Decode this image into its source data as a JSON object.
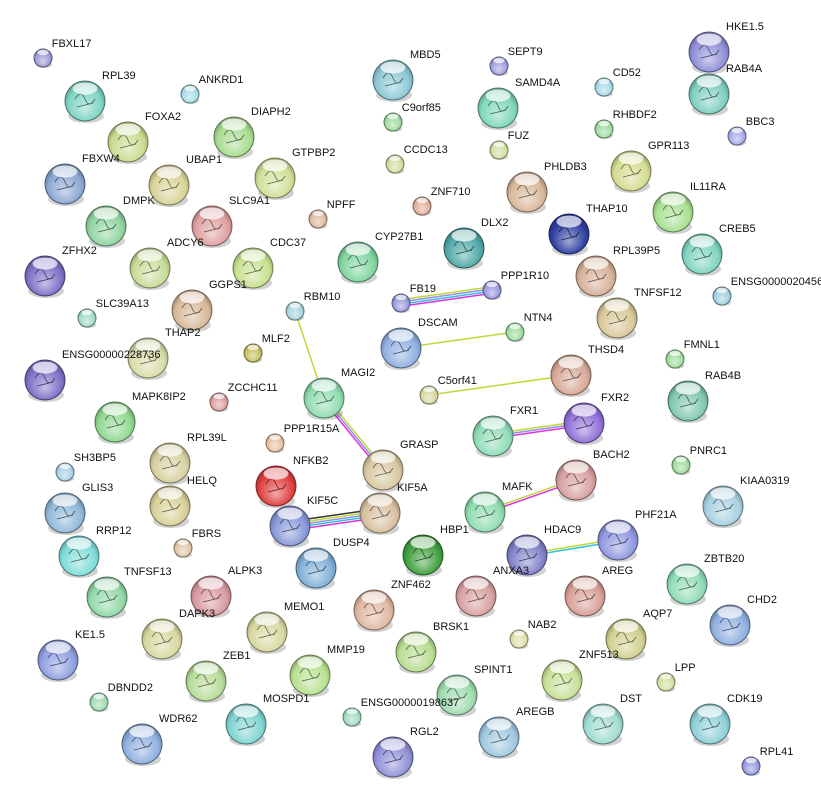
{
  "network": {
    "nodes": [
      {
        "label": "FBXL17",
        "color": "#9b9bd8",
        "structure": false
      },
      {
        "label": "RPL39",
        "color": "#7fd4c4",
        "structure": true
      },
      {
        "label": "ANKRD1",
        "color": "#a8dbe6",
        "structure": false
      },
      {
        "label": "MBD5",
        "color": "#8cc8d4",
        "structure": true
      },
      {
        "label": "SEPT9",
        "color": "#a0a0e0",
        "structure": false
      },
      {
        "label": "SAMD4A",
        "color": "#7fd8b8",
        "structure": true
      },
      {
        "label": "CD52",
        "color": "#a8dbe6",
        "structure": false
      },
      {
        "label": "HKE1.5",
        "color": "#9090d8",
        "structure": true
      },
      {
        "label": "RAB4A",
        "color": "#80cfc0",
        "structure": true
      },
      {
        "label": "BBC3",
        "color": "#a8a8e8",
        "structure": false
      },
      {
        "label": "C9orf85",
        "color": "#a0dca0",
        "structure": false
      },
      {
        "label": "RHBDF2",
        "color": "#a0dca0",
        "structure": false
      },
      {
        "label": "FOXA2",
        "color": "#c8dc90",
        "structure": true
      },
      {
        "label": "DIAPH2",
        "color": "#a8dc90",
        "structure": true
      },
      {
        "label": "FUZ",
        "color": "#d0e0a0",
        "structure": false
      },
      {
        "label": "CCDC13",
        "color": "#d0dca0",
        "structure": false
      },
      {
        "label": "GPR113",
        "color": "#d4dc90",
        "structure": true
      },
      {
        "label": "FBXW4",
        "color": "#8ca8d4",
        "structure": true
      },
      {
        "label": "UBAP1",
        "color": "#d8d498",
        "structure": true
      },
      {
        "label": "GTPBP2",
        "color": "#d0e098",
        "structure": true
      },
      {
        "label": "PHLDB3",
        "color": "#d8b898",
        "structure": true
      },
      {
        "label": "IL11RA",
        "color": "#a8e090",
        "structure": true
      },
      {
        "label": "ZNF710",
        "color": "#e0b098",
        "structure": false
      },
      {
        "label": "NPFF",
        "color": "#e0b8a0",
        "structure": false
      },
      {
        "label": "DMPK",
        "color": "#90d4a0",
        "structure": true
      },
      {
        "label": "SLC9A1",
        "color": "#e0a0a0",
        "structure": true
      },
      {
        "label": "CDC37",
        "color": "#c8e090",
        "structure": true
      },
      {
        "label": "DLX2",
        "color": "#50a8a8",
        "structure": true
      },
      {
        "label": "THAP10",
        "color": "#3040a0",
        "structure": true
      },
      {
        "label": "CREB5",
        "color": "#80d4c0",
        "structure": true
      },
      {
        "label": "ZFHX2",
        "color": "#8070c8",
        "structure": true
      },
      {
        "label": "ADCY6",
        "color": "#c8dc98",
        "structure": true
      },
      {
        "label": "CYP27B1",
        "color": "#80d4a0",
        "structure": true
      },
      {
        "label": "RPL39P5",
        "color": "#d8b098",
        "structure": true
      },
      {
        "label": "ENSG0000020456",
        "color": "#a0d0e0",
        "structure": false
      },
      {
        "label": "FB19",
        "color": "#9898e0",
        "structure": false
      },
      {
        "label": "PPP1R10",
        "color": "#9898e0",
        "structure": false
      },
      {
        "label": "SLC39A13",
        "color": "#a0dcc8",
        "structure": false
      },
      {
        "label": "GGPS1",
        "color": "#d8b898",
        "structure": true
      },
      {
        "label": "RBM10",
        "color": "#a8d4e0",
        "structure": false
      },
      {
        "label": "TNFSF12",
        "color": "#d8c898",
        "structure": true
      },
      {
        "label": "DSCAM",
        "color": "#90b0e0",
        "structure": true
      },
      {
        "label": "NTN4",
        "color": "#a0dca0",
        "structure": false
      },
      {
        "label": "THAP2",
        "color": "#d8dca8",
        "structure": true
      },
      {
        "label": "MLF2",
        "color": "#c8c060",
        "structure": false
      },
      {
        "label": "FMNL1",
        "color": "#a0dca0",
        "structure": false
      },
      {
        "label": "ENSG00000228736",
        "color": "#8070c8",
        "structure": true
      },
      {
        "label": "THSD4",
        "color": "#d8a898",
        "structure": true
      },
      {
        "label": "C5orf41",
        "color": "#d8d8a0",
        "structure": false
      },
      {
        "label": "MAGI2",
        "color": "#90dcb0",
        "structure": true
      },
      {
        "label": "ZCCHC11",
        "color": "#e0a0a0",
        "structure": false
      },
      {
        "label": "RAB4B",
        "color": "#80c8b0",
        "structure": true
      },
      {
        "label": "MAPK8IP2",
        "color": "#90d890",
        "structure": true
      },
      {
        "label": "FXR1",
        "color": "#90dcb8",
        "structure": true
      },
      {
        "label": "FXR2",
        "color": "#9070d8",
        "structure": true
      },
      {
        "label": "PPP1R15A",
        "color": "#e8c0a0",
        "structure": false
      },
      {
        "label": "PNRC1",
        "color": "#a0dca0",
        "structure": false
      },
      {
        "label": "SH3BP5",
        "color": "#a8d0e8",
        "structure": false
      },
      {
        "label": "RPL39L",
        "color": "#d8d0a0",
        "structure": true
      },
      {
        "label": "GRASP",
        "color": "#d8c8a0",
        "structure": true
      },
      {
        "label": "NFKB2",
        "color": "#e04040",
        "structure": true
      },
      {
        "label": "HELQ",
        "color": "#d8d098",
        "structure": true
      },
      {
        "label": "BACH2",
        "color": "#d8a0a0",
        "structure": true
      },
      {
        "label": "KIAA0319",
        "color": "#a8d0e0",
        "structure": true
      },
      {
        "label": "GLIS3",
        "color": "#90b8d8",
        "structure": true
      },
      {
        "label": "KIF5C",
        "color": "#8898d8",
        "structure": true
      },
      {
        "label": "KIF5A",
        "color": "#d8c0a0",
        "structure": true
      },
      {
        "label": "MAFK",
        "color": "#90dcb0",
        "structure": true
      },
      {
        "label": "PHF21A",
        "color": "#9098e0",
        "structure": true
      },
      {
        "label": "FBRS",
        "color": "#e0c8a8",
        "structure": false
      },
      {
        "label": "RRP12",
        "color": "#80dcd8",
        "structure": true
      },
      {
        "label": "DUSP4",
        "color": "#80b0d8",
        "structure": true
      },
      {
        "label": "HBP1",
        "color": "#40a040",
        "structure": true
      },
      {
        "label": "HDAC9",
        "color": "#8080c8",
        "structure": true
      },
      {
        "label": "ZBTB20",
        "color": "#90dcb8",
        "structure": true
      },
      {
        "label": "TNFSF13",
        "color": "#90d8a8",
        "structure": true
      },
      {
        "label": "ALPK3",
        "color": "#d898a0",
        "structure": true
      },
      {
        "label": "ZNF462",
        "color": "#e0b8a0",
        "structure": true
      },
      {
        "label": "ANXA3",
        "color": "#d8a0a0",
        "structure": true
      },
      {
        "label": "AREG",
        "color": "#d8a098",
        "structure": true
      },
      {
        "label": "CHD2",
        "color": "#90b0e0",
        "structure": true
      },
      {
        "label": "DAPK3",
        "color": "#d8d8a0",
        "structure": true
      },
      {
        "label": "MEMO1",
        "color": "#d8d8a0",
        "structure": true
      },
      {
        "label": "NAB2",
        "color": "#e0e0a8",
        "structure": false
      },
      {
        "label": "AQP7",
        "color": "#d0d090",
        "structure": true
      },
      {
        "label": "KE1.5",
        "color": "#90a0e0",
        "structure": true
      },
      {
        "label": "BRSK1",
        "color": "#b8dc90",
        "structure": true
      },
      {
        "label": "ZNF513",
        "color": "#c8e098",
        "structure": true
      },
      {
        "label": "LPP",
        "color": "#d0e0a0",
        "structure": false
      },
      {
        "label": "ZEB1",
        "color": "#b8dc98",
        "structure": true
      },
      {
        "label": "MMP19",
        "color": "#b8e090",
        "structure": true
      },
      {
        "label": "SPINT1",
        "color": "#a0dcb0",
        "structure": true
      },
      {
        "label": "DBNDD2",
        "color": "#a0dcb0",
        "structure": false
      },
      {
        "label": "MOSPD1",
        "color": "#80d4d0",
        "structure": true
      },
      {
        "label": "ENSG00000198637",
        "color": "#a0dcc0",
        "structure": false
      },
      {
        "label": "WDR62",
        "color": "#90b0e0",
        "structure": true
      },
      {
        "label": "RGL2",
        "color": "#9090d8",
        "structure": true
      },
      {
        "label": "AREGB",
        "color": "#a0c8e0",
        "structure": true
      },
      {
        "label": "DST",
        "color": "#a0dcd0",
        "structure": true
      },
      {
        "label": "CDK19",
        "color": "#90d0d8",
        "structure": true
      },
      {
        "label": "RPL41",
        "color": "#9898e0",
        "structure": false
      }
    ],
    "edges": [
      {
        "from": "RBM10",
        "to": "MAGI2",
        "evidence": [
          "#c0d838"
        ]
      },
      {
        "from": "DSCAM",
        "to": "NTN4",
        "evidence": [
          "#c0d838"
        ]
      },
      {
        "from": "C5orf41",
        "to": "THSD4",
        "evidence": [
          "#c0d838"
        ]
      },
      {
        "from": "FB19",
        "to": "PPP1R10",
        "evidence": [
          "#c0d838",
          "#9090f0",
          "#30c0e0",
          "#e030e0"
        ]
      },
      {
        "from": "MAGI2",
        "to": "GRASP",
        "evidence": [
          "#c0d838",
          "#9090f0",
          "#e030e0"
        ]
      },
      {
        "from": "FXR1",
        "to": "FXR2",
        "evidence": [
          "#c0d838",
          "#9090f0",
          "#e030e0"
        ]
      },
      {
        "from": "KIF5C",
        "to": "KIF5A",
        "evidence": [
          "#333333",
          "#c0d838",
          "#9090f0",
          "#30c0e0",
          "#e030e0"
        ]
      },
      {
        "from": "MAFK",
        "to": "BACH2",
        "evidence": [
          "#c0d838",
          "#e030e0"
        ]
      },
      {
        "from": "HDAC9",
        "to": "PHF21A",
        "evidence": [
          "#c0d838",
          "#30c0e0"
        ]
      }
    ]
  }
}
